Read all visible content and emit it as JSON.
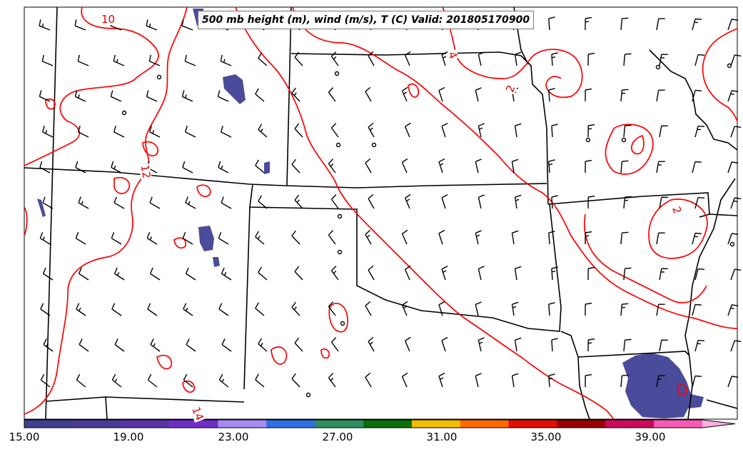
{
  "title": "500 mb height (m), wind (m/s), T (C) Valid: 201805170900",
  "contour_labels": [
    "10",
    "4",
    "2",
    "12",
    "2",
    "14"
  ],
  "colorbar": {
    "ticks": [
      "15.00",
      "19.00",
      "23.00",
      "27.00",
      "31.00",
      "35.00",
      "39.00"
    ],
    "colors": [
      "#3f3f8f",
      "#4a3c96",
      "#5a35a8",
      "#6f2ec4",
      "#a78bf5",
      "#2f6fe4",
      "#2f8f5f",
      "#0a6e0a",
      "#f0be00",
      "#ff6a00",
      "#e01000",
      "#990000",
      "#cc0c5a",
      "#f75ab4",
      "#ffb2e0"
    ]
  },
  "colors": {
    "contour": "#ff0000",
    "border": "#000000",
    "wind_barb": "#000000",
    "precip": "#4b4b9b"
  }
}
